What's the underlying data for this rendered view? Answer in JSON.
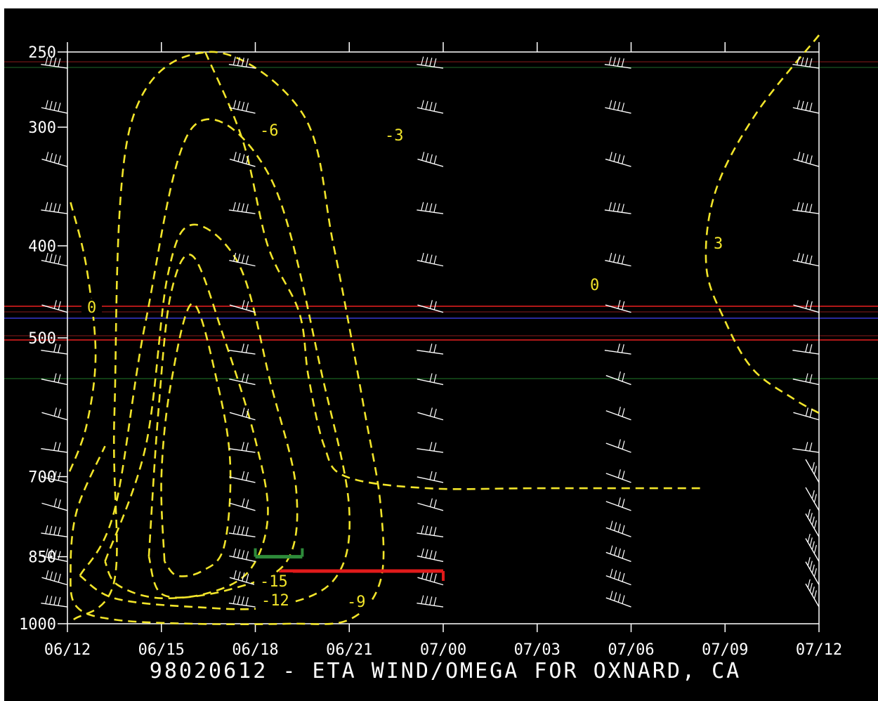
{
  "title": "98020612 - ETA WIND/OMEGA FOR OXNARD, CA",
  "colors": {
    "background": "#000000",
    "axis": "#ffffff",
    "contour": "#f2e52a",
    "wind_barb": "#ffffff",
    "marker_green": "#2e8b3a",
    "marker_red": "#e01a1a",
    "reference_line_red": "#b01818",
    "reference_line_blue": "#2a2a9a",
    "reference_line_green": "#1f7a2a"
  },
  "chart_data": {
    "type": "contour",
    "title": "98020612 - ETA WIND/OMEGA FOR OXNARD, CA",
    "xlabel": "",
    "ylabel": "",
    "x_axis": {
      "tick_labels": [
        "06/12",
        "06/15",
        "06/18",
        "06/21",
        "07/00",
        "07/03",
        "07/06",
        "07/09",
        "07/12"
      ],
      "range_hours": [
        0,
        24
      ]
    },
    "y_axis": {
      "tick_labels": [
        "250",
        "300",
        "400",
        "500",
        "700",
        "850",
        "1000"
      ],
      "tick_values": [
        250,
        300,
        400,
        500,
        700,
        850,
        1000
      ],
      "range": [
        250,
        1000
      ],
      "inverted": true
    },
    "contour_labels": [
      "0",
      "-3",
      "-6",
      "-9",
      "-12",
      "-15",
      "0",
      "3"
    ],
    "contours": [
      {
        "level": 0,
        "points": [
          [
            0.1,
            360
          ],
          [
            0.6,
            420
          ],
          [
            0.9,
            520
          ],
          [
            0.6,
            620
          ],
          [
            0,
            700
          ]
        ]
      },
      {
        "level": -3,
        "points": [
          [
            0.2,
            990
          ],
          [
            1.5,
            900
          ],
          [
            1.5,
            600
          ],
          [
            2.0,
            300
          ],
          [
            4.5,
            250
          ],
          [
            7.5,
            290
          ],
          [
            8.5,
            400
          ],
          [
            9.5,
            600
          ],
          [
            10,
            750
          ],
          [
            10,
            900
          ],
          [
            9,
            990
          ],
          [
            7,
            1000
          ],
          [
            4,
            1000
          ],
          [
            1.5,
            990
          ],
          [
            0.3,
            960
          ],
          [
            0.1,
            880
          ],
          [
            0.3,
            760
          ],
          [
            1.2,
            650
          ]
        ]
      },
      {
        "level": -6,
        "points": [
          [
            0.4,
            890
          ],
          [
            1.5,
            760
          ],
          [
            2.5,
            480
          ],
          [
            4.0,
            300
          ],
          [
            6.5,
            340
          ],
          [
            8.2,
            560
          ],
          [
            9.0,
            760
          ],
          [
            8.5,
            900
          ],
          [
            6.5,
            960
          ],
          [
            4.0,
            960
          ],
          [
            1.5,
            940
          ],
          [
            0.4,
            890
          ]
        ]
      },
      {
        "level": -9,
        "points": [
          [
            1.2,
            860
          ],
          [
            2.5,
            650
          ],
          [
            3.2,
            430
          ],
          [
            4.0,
            380
          ],
          [
            5.5,
            420
          ],
          [
            6.5,
            560
          ],
          [
            7.3,
            720
          ],
          [
            7.0,
            860
          ],
          [
            5.2,
            920
          ],
          [
            3.0,
            940
          ],
          [
            1.6,
            910
          ],
          [
            1.2,
            860
          ]
        ]
      },
      {
        "level": -12,
        "points": [
          [
            2.6,
            850
          ],
          [
            2.9,
            600
          ],
          [
            3.3,
            450
          ],
          [
            4.0,
            410
          ],
          [
            5.0,
            500
          ],
          [
            6.0,
            640
          ],
          [
            6.4,
            770
          ],
          [
            5.8,
            880
          ],
          [
            4.4,
            930
          ],
          [
            3.0,
            930
          ],
          [
            2.6,
            850
          ]
        ]
      },
      {
        "level": -15,
        "points": [
          [
            3.1,
            860
          ],
          [
            3.0,
            700
          ],
          [
            3.3,
            560
          ],
          [
            4.0,
            460
          ],
          [
            4.8,
            560
          ],
          [
            5.2,
            680
          ],
          [
            5.0,
            830
          ],
          [
            4.3,
            880
          ],
          [
            3.5,
            890
          ],
          [
            3.1,
            860
          ]
        ]
      },
      {
        "level": 0,
        "points": [
          [
            4.4,
            250
          ],
          [
            5.6,
            310
          ],
          [
            6.4,
            400
          ],
          [
            7.4,
            470
          ],
          [
            7.7,
            550
          ],
          [
            8.2,
            650
          ],
          [
            8.9,
            700
          ],
          [
            11.5,
            720
          ],
          [
            15,
            720
          ],
          [
            20.2,
            720
          ]
        ]
      },
      {
        "level": 3,
        "points": [
          [
            24,
            240
          ],
          [
            22.0,
            290
          ],
          [
            20.7,
            350
          ],
          [
            20.4,
            420
          ],
          [
            21.0,
            480
          ],
          [
            21.9,
            540
          ],
          [
            23.2,
            580
          ],
          [
            24,
            600
          ]
        ]
      }
    ],
    "wind_profiles": [
      {
        "time": "06/12"
      },
      {
        "time": "06/18"
      },
      {
        "time": "07/00"
      },
      {
        "time": "07/06"
      },
      {
        "time": "07/12"
      }
    ],
    "markers": [
      {
        "color": "green",
        "x_hours": [
          6.0,
          7.5
        ],
        "level": 850
      },
      {
        "color": "red",
        "x_hours": [
          6.8,
          12.0
        ],
        "level": 880
      }
    ]
  }
}
